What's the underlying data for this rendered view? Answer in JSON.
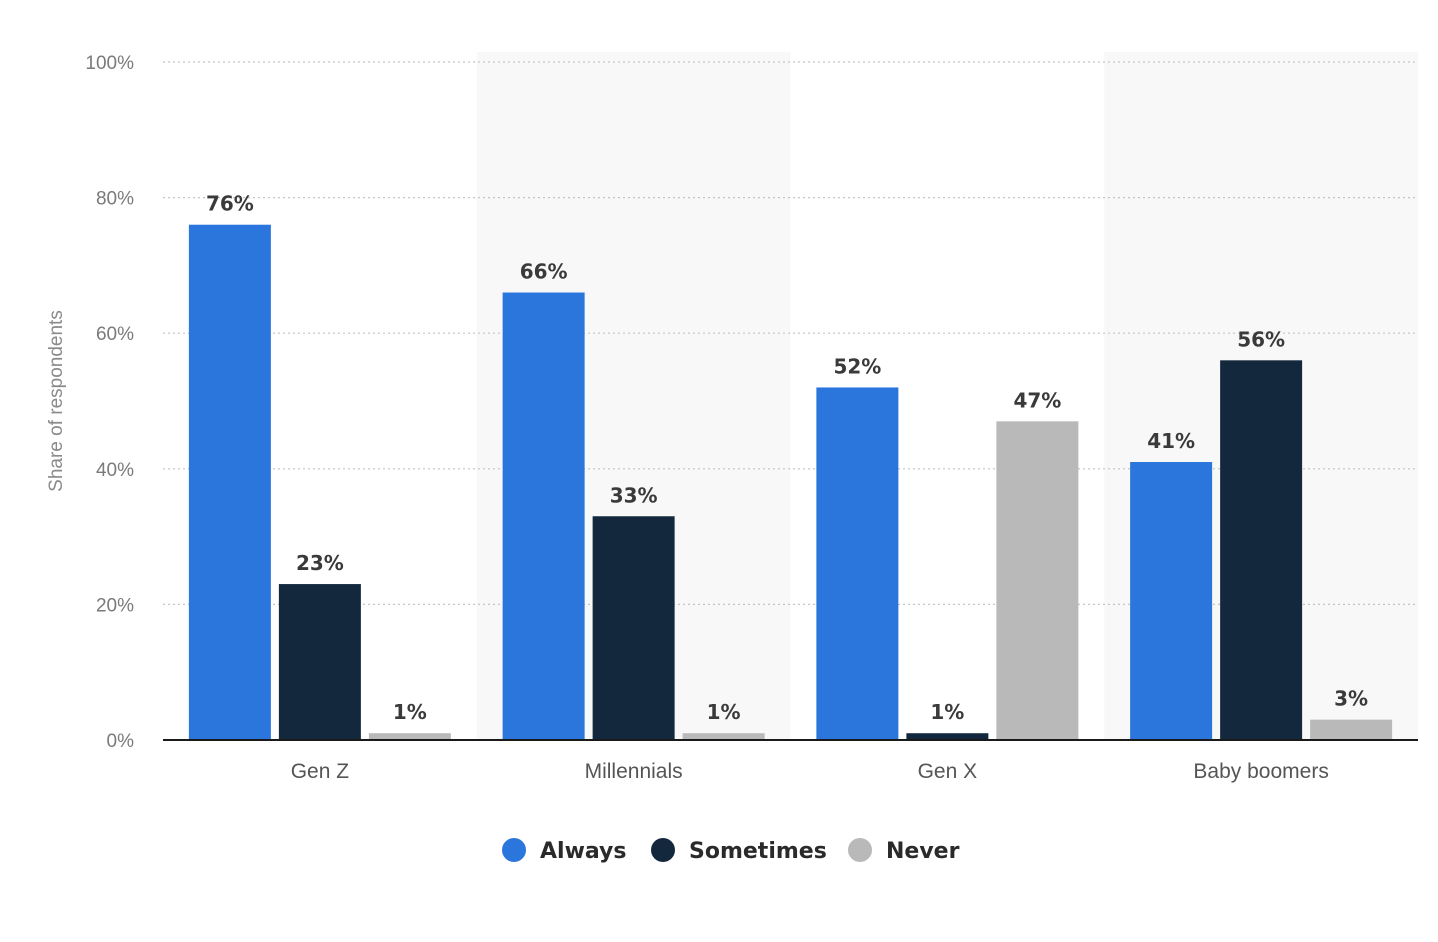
{
  "chart_data": {
    "type": "bar",
    "title": "",
    "xlabel": "",
    "ylabel": "Share of respondents",
    "categories": [
      "Gen Z",
      "Millennials",
      "Gen X",
      "Baby boomers"
    ],
    "series": [
      {
        "name": "Always",
        "color": "#2b76dd",
        "values": [
          76,
          66,
          52,
          41
        ],
        "labels": [
          "76%",
          "66%",
          "52%",
          "41%"
        ]
      },
      {
        "name": "Sometimes",
        "color": "#14283d",
        "values": [
          23,
          33,
          1,
          56
        ],
        "labels": [
          "23%",
          "33%",
          "1%",
          "56%"
        ]
      },
      {
        "name": "Never",
        "color": "#b9b9b9",
        "values": [
          1,
          1,
          47,
          3
        ],
        "labels": [
          "1%",
          "1%",
          "47%",
          "3%"
        ]
      }
    ],
    "ylim": [
      0,
      100
    ],
    "yticks": [
      0,
      20,
      40,
      60,
      80,
      100
    ],
    "ytick_labels": [
      "0%",
      "20%",
      "40%",
      "60%",
      "80%",
      "100%"
    ],
    "grid": true,
    "legend_position": "bottom-center",
    "alternating_band_color": "#f8f8f8"
  }
}
